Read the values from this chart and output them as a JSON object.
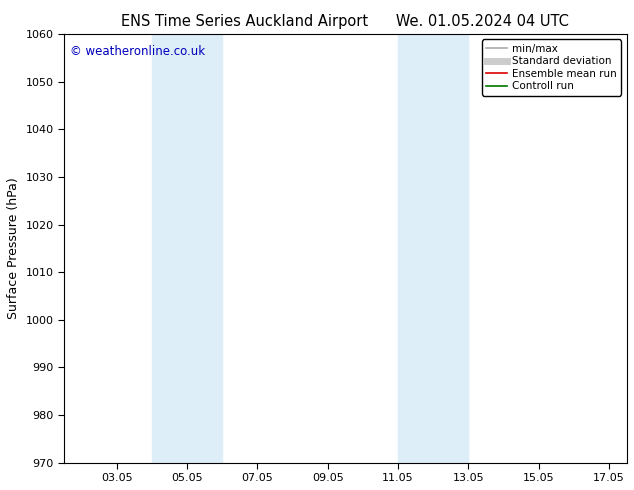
{
  "title_left": "ENS Time Series Auckland Airport",
  "title_right": "We. 01.05.2024 04 UTC",
  "ylabel": "Surface Pressure (hPa)",
  "ylim": [
    970,
    1060
  ],
  "yticks": [
    970,
    980,
    990,
    1000,
    1010,
    1020,
    1030,
    1040,
    1050,
    1060
  ],
  "xlim": [
    1.5,
    17.5
  ],
  "xtick_labels": [
    "03.05",
    "05.05",
    "07.05",
    "09.05",
    "11.05",
    "13.05",
    "15.05",
    "17.05"
  ],
  "xtick_positions": [
    3,
    5,
    7,
    9,
    11,
    13,
    15,
    17
  ],
  "shaded_bands": [
    {
      "x_start": 4.0,
      "x_end": 6.0,
      "color": "#ddeef8"
    },
    {
      "x_start": 11.0,
      "x_end": 13.0,
      "color": "#ddeef8"
    }
  ],
  "watermark_text": "© weatheronline.co.uk",
  "watermark_color": "#0000bb",
  "legend_entries": [
    {
      "label": "min/max",
      "color": "#aaaaaa",
      "lw": 1.2
    },
    {
      "label": "Standard deviation",
      "color": "#cccccc",
      "lw": 5
    },
    {
      "label": "Ensemble mean run",
      "color": "#dd0000",
      "lw": 1.2
    },
    {
      "label": "Controll run",
      "color": "#007700",
      "lw": 1.2
    }
  ],
  "background_color": "#ffffff",
  "plot_bg_color": "#ffffff",
  "title_fontsize": 10.5,
  "ylabel_fontsize": 9,
  "tick_fontsize": 8,
  "watermark_fontsize": 8.5,
  "legend_fontsize": 7.5
}
